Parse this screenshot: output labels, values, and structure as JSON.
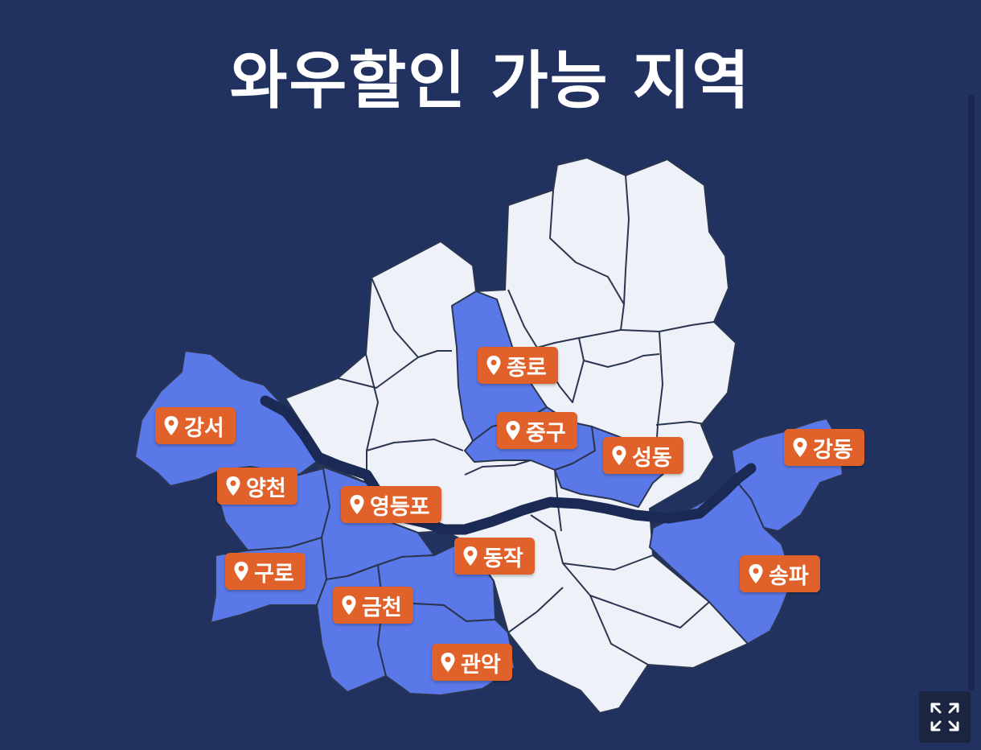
{
  "title": "와우할인 가능 지역",
  "colors": {
    "background": "#213261",
    "covered": "#5b78e8",
    "uncovered": "#eef2f8",
    "river": "#1b2a55",
    "pin": "#e0622a"
  },
  "icons": {
    "pin": "location-pin-icon",
    "expand": "expand-icon"
  },
  "districts": [
    {
      "id": "jongno",
      "label": "종로"
    },
    {
      "id": "gangseo",
      "label": "강서"
    },
    {
      "id": "junggu",
      "label": "중구"
    },
    {
      "id": "seongdong",
      "label": "성동"
    },
    {
      "id": "gangdong",
      "label": "강동"
    },
    {
      "id": "yangcheon",
      "label": "양천"
    },
    {
      "id": "yeongdeungpo",
      "label": "영등포"
    },
    {
      "id": "dongjak",
      "label": "동작"
    },
    {
      "id": "songpa",
      "label": "송파"
    },
    {
      "id": "guro",
      "label": "구로"
    },
    {
      "id": "geumcheon",
      "label": "금천"
    },
    {
      "id": "gwanak",
      "label": "관악"
    }
  ]
}
